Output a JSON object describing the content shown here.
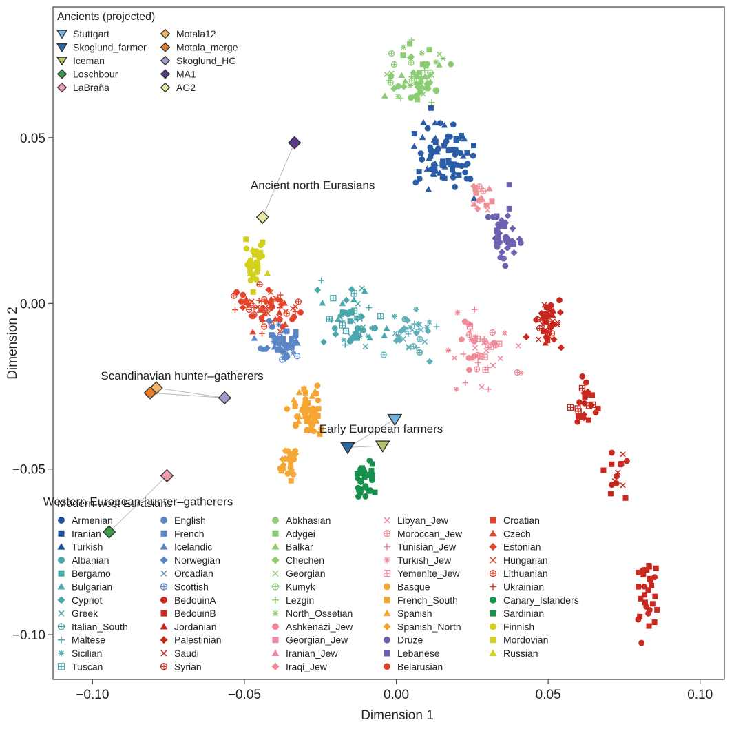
{
  "chart_data": {
    "type": "scatter",
    "xlabel": "Dimension 1",
    "ylabel": "Dimension 2",
    "xlim": [
      -0.113,
      0.108
    ],
    "ylim": [
      -0.1135,
      0.0895
    ],
    "xticks": [
      -0.1,
      -0.05,
      0.0,
      0.05,
      0.1
    ],
    "xtick_labels": [
      "−0.10",
      "−0.05",
      "0.00",
      "0.05",
      "0.10"
    ],
    "yticks": [
      -0.1,
      -0.05,
      0.0,
      0.05
    ],
    "ytick_labels": [
      "−0.10",
      "−0.05",
      "0.00",
      "0.05"
    ],
    "grid": false,
    "legend_ancients_title": "Ancients (projected)",
    "legend_modern_title": "Modern west Eurasians",
    "ancients": [
      {
        "name": "Stuttgart",
        "marker": "tri-down",
        "color": "#6fb1e0",
        "x": -0.0005,
        "y": -0.035
      },
      {
        "name": "Skoglund_farmer",
        "marker": "tri-down",
        "color": "#2b6ca8",
        "x": -0.016,
        "y": -0.0435
      },
      {
        "name": "Iceman",
        "marker": "tri-down",
        "color": "#b6c36a",
        "x": -0.0045,
        "y": -0.043
      },
      {
        "name": "Loschbour",
        "marker": "diamond",
        "color": "#3d9a47",
        "x": -0.0945,
        "y": -0.069
      },
      {
        "name": "LaBraña",
        "marker": "diamond",
        "color": "#f19aa9",
        "x": -0.0755,
        "y": -0.052
      },
      {
        "name": "Motala12",
        "marker": "diamond",
        "color": "#f3b564",
        "x": -0.079,
        "y": -0.0255
      },
      {
        "name": "Motala_merge",
        "marker": "diamond",
        "color": "#e87d2c",
        "x": -0.081,
        "y": -0.027
      },
      {
        "name": "Skoglund_HG",
        "marker": "diamond",
        "color": "#a79ac8",
        "x": -0.0565,
        "y": -0.0285
      },
      {
        "name": "MA1",
        "marker": "diamond",
        "color": "#5b3a8f",
        "x": -0.0335,
        "y": 0.0485
      },
      {
        "name": "AG2",
        "marker": "diamond",
        "color": "#e6eaa1",
        "x": -0.044,
        "y": 0.026
      }
    ],
    "links": [
      [
        -0.0755,
        -0.052,
        -0.0945,
        -0.069
      ],
      [
        -0.079,
        -0.0255,
        -0.0565,
        -0.0285
      ],
      [
        -0.081,
        -0.027,
        -0.0565,
        -0.0285
      ],
      [
        -0.044,
        0.026,
        -0.0335,
        0.0485
      ],
      [
        -0.016,
        -0.0435,
        -0.0045,
        -0.043
      ],
      [
        -0.016,
        -0.0435,
        -0.0005,
        -0.035
      ]
    ],
    "annotations": [
      {
        "text": "Ancient north Eurasians",
        "x": -0.0275,
        "y": 0.0345
      },
      {
        "text": "Scandinavian hunter–gatherers",
        "x": -0.0705,
        "y": -0.023
      },
      {
        "text": "Early European farmers",
        "x": -0.005,
        "y": -0.039
      },
      {
        "text": "Western European hunter–gatherers",
        "x": -0.085,
        "y": -0.061
      }
    ],
    "clusters": [
      {
        "color": "#8ccd73",
        "cx": 0.006,
        "cy": 0.068,
        "sx": 0.0095,
        "sy": 0.008,
        "n": 70,
        "markers": [
          "circle",
          "square",
          "cross",
          "plus",
          "x",
          "triangle",
          "diamond",
          "circleplus"
        ]
      },
      {
        "color": "#2b5da6",
        "cx": 0.016,
        "cy": 0.045,
        "sx": 0.0085,
        "sy": 0.0085,
        "n": 85,
        "markers": [
          "circle",
          "square",
          "triangle",
          "triangle",
          "square",
          "circle"
        ]
      },
      {
        "color": "#f08f96",
        "cx": 0.0275,
        "cy": 0.033,
        "sx": 0.0035,
        "sy": 0.0045,
        "n": 18,
        "markers": [
          "triangle",
          "square",
          "diamond",
          "circleplus",
          "x"
        ]
      },
      {
        "color": "#6c62b0",
        "cx": 0.0355,
        "cy": 0.02,
        "sx": 0.004,
        "sy": 0.0085,
        "n": 42,
        "markers": [
          "circle",
          "square",
          "diamond"
        ]
      },
      {
        "color": "#d4d11d",
        "cx": -0.0465,
        "cy": 0.013,
        "sx": 0.0025,
        "sy": 0.006,
        "n": 32,
        "markers": [
          "circle",
          "square",
          "triangle"
        ]
      },
      {
        "color": "#e2452c",
        "cx": -0.043,
        "cy": -0.001,
        "sx": 0.0095,
        "sy": 0.0055,
        "n": 70,
        "markers": [
          "circle",
          "circleplus",
          "x",
          "plus",
          "diamond",
          "triangle"
        ]
      },
      {
        "color": "#5a86c4",
        "cx": -0.038,
        "cy": -0.011,
        "sx": 0.0055,
        "sy": 0.0045,
        "n": 55,
        "markers": [
          "circle",
          "square",
          "triangle",
          "diamond",
          "cross",
          "circleplus"
        ]
      },
      {
        "color": "#4aa7ab",
        "cx": -0.015,
        "cy": -0.004,
        "sx": 0.008,
        "sy": 0.0085,
        "n": 60,
        "markers": [
          "triangle",
          "x",
          "square",
          "tuscan",
          "cross",
          "circle",
          "diamond",
          "plus"
        ]
      },
      {
        "color": "#5db0b8",
        "cx": 0.006,
        "cy": -0.01,
        "sx": 0.0065,
        "sy": 0.006,
        "n": 38,
        "markers": [
          "cross",
          "diamond",
          "x",
          "plus",
          "circleplus"
        ]
      },
      {
        "color": "#f08a9a",
        "cx": 0.027,
        "cy": -0.015,
        "sx": 0.011,
        "sy": 0.008,
        "n": 48,
        "markers": [
          "cross",
          "x",
          "circleplus",
          "tuscan",
          "plus",
          "circle"
        ]
      },
      {
        "color": "#f6a533",
        "cx": -0.029,
        "cy": -0.033,
        "sx": 0.0045,
        "sy": 0.0055,
        "n": 60,
        "markers": [
          "triangle",
          "circle",
          "square"
        ]
      },
      {
        "color": "#f4a937",
        "cx": -0.035,
        "cy": -0.048,
        "sx": 0.0035,
        "sy": 0.0055,
        "n": 28,
        "markers": [
          "circle",
          "diamond",
          "square"
        ]
      },
      {
        "color": "#17904e",
        "cx": -0.01,
        "cy": -0.053,
        "sx": 0.0025,
        "sy": 0.004,
        "n": 32,
        "markers": [
          "square",
          "circle"
        ]
      },
      {
        "color": "#c9281f",
        "cx": 0.05,
        "cy": -0.007,
        "sx": 0.0045,
        "sy": 0.007,
        "n": 45,
        "markers": [
          "diamond",
          "triangle",
          "x",
          "square",
          "circleplus",
          "circle"
        ]
      },
      {
        "color": "#c9281f",
        "cx": 0.062,
        "cy": -0.03,
        "sx": 0.003,
        "sy": 0.006,
        "n": 24,
        "markers": [
          "circle",
          "diamond",
          "tuscan",
          "square"
        ]
      },
      {
        "color": "#c9281f",
        "cx": 0.072,
        "cy": -0.05,
        "sx": 0.003,
        "sy": 0.007,
        "n": 16,
        "markers": [
          "circle",
          "x",
          "square"
        ]
      },
      {
        "color": "#c9281f",
        "cx": 0.083,
        "cy": -0.088,
        "sx": 0.004,
        "sy": 0.01,
        "n": 28,
        "markers": [
          "square",
          "square",
          "circle"
        ]
      }
    ],
    "modern_legend": [
      {
        "name": "Armenian",
        "marker": "circle",
        "color": "#1f4e9b"
      },
      {
        "name": "Iranian",
        "marker": "square",
        "color": "#1f4e9b"
      },
      {
        "name": "Turkish",
        "marker": "triangle",
        "color": "#1f4e9b"
      },
      {
        "name": "Albanian",
        "marker": "circle",
        "color": "#4aa7ab"
      },
      {
        "name": "Bergamo",
        "marker": "square",
        "color": "#4aa7ab"
      },
      {
        "name": "Bulgarian",
        "marker": "triangle",
        "color": "#4aa7ab"
      },
      {
        "name": "Cypriot",
        "marker": "diamond",
        "color": "#4aa7ab"
      },
      {
        "name": "Greek",
        "marker": "x",
        "color": "#4aa7ab"
      },
      {
        "name": "Italian_South",
        "marker": "circleplus",
        "color": "#4aa7ab"
      },
      {
        "name": "Maltese",
        "marker": "plus",
        "color": "#4aa7ab"
      },
      {
        "name": "Sicilian",
        "marker": "cross",
        "color": "#4aa7ab"
      },
      {
        "name": "Tuscan",
        "marker": "tuscan",
        "color": "#4aa7ab"
      },
      {
        "name": "English",
        "marker": "circle",
        "color": "#5a86c4"
      },
      {
        "name": "French",
        "marker": "square",
        "color": "#5a86c4"
      },
      {
        "name": "Icelandic",
        "marker": "triangle",
        "color": "#5a86c4"
      },
      {
        "name": "Norwegian",
        "marker": "diamond",
        "color": "#5a86c4"
      },
      {
        "name": "Orcadian",
        "marker": "x",
        "color": "#5a86c4"
      },
      {
        "name": "Scottish",
        "marker": "circleplus",
        "color": "#5a86c4"
      },
      {
        "name": "BedouinA",
        "marker": "circle",
        "color": "#c9281f"
      },
      {
        "name": "BedouinB",
        "marker": "square",
        "color": "#c9281f"
      },
      {
        "name": "Jordanian",
        "marker": "triangle",
        "color": "#c9281f"
      },
      {
        "name": "Palestinian",
        "marker": "diamond",
        "color": "#c9281f"
      },
      {
        "name": "Saudi",
        "marker": "x",
        "color": "#c9281f"
      },
      {
        "name": "Syrian",
        "marker": "circleplus",
        "color": "#c9281f"
      },
      {
        "name": "Abkhasian",
        "marker": "circle",
        "color": "#8ccd73"
      },
      {
        "name": "Adygei",
        "marker": "square",
        "color": "#8ccd73"
      },
      {
        "name": "Balkar",
        "marker": "triangle",
        "color": "#8ccd73"
      },
      {
        "name": "Chechen",
        "marker": "diamond",
        "color": "#8ccd73"
      },
      {
        "name": "Georgian",
        "marker": "x",
        "color": "#8ccd73"
      },
      {
        "name": "Kumyk",
        "marker": "circleplus",
        "color": "#8ccd73"
      },
      {
        "name": "Lezgin",
        "marker": "plus",
        "color": "#8ccd73"
      },
      {
        "name": "North_Ossetian",
        "marker": "cross",
        "color": "#8ccd73"
      },
      {
        "name": "Ashkenazi_Jew",
        "marker": "circle",
        "color": "#f08a9a"
      },
      {
        "name": "Georgian_Jew",
        "marker": "square",
        "color": "#f08a9a"
      },
      {
        "name": "Iranian_Jew",
        "marker": "triangle",
        "color": "#f08a9a"
      },
      {
        "name": "Iraqi_Jew",
        "marker": "diamond",
        "color": "#f08a9a"
      },
      {
        "name": "Libyan_Jew",
        "marker": "x",
        "color": "#f08a9a"
      },
      {
        "name": "Moroccan_Jew",
        "marker": "circleplus",
        "color": "#f08a9a"
      },
      {
        "name": "Tunisian_Jew",
        "marker": "plus",
        "color": "#f08a9a"
      },
      {
        "name": "Turkish_Jew",
        "marker": "cross",
        "color": "#f08a9a"
      },
      {
        "name": "Yemenite_Jew",
        "marker": "tuscan",
        "color": "#f08a9a"
      },
      {
        "name": "Basque",
        "marker": "circle",
        "color": "#f6a533"
      },
      {
        "name": "French_South",
        "marker": "square",
        "color": "#f6a533"
      },
      {
        "name": "Spanish",
        "marker": "triangle",
        "color": "#f6a533"
      },
      {
        "name": "Spanish_North",
        "marker": "diamond",
        "color": "#f6a533"
      },
      {
        "name": "Druze",
        "marker": "circle",
        "color": "#6c62b0"
      },
      {
        "name": "Lebanese",
        "marker": "square",
        "color": "#6c62b0"
      },
      {
        "name": "Belarusian",
        "marker": "circle",
        "color": "#e2452c"
      },
      {
        "name": "Croatian",
        "marker": "square",
        "color": "#e2452c"
      },
      {
        "name": "Czech",
        "marker": "triangle",
        "color": "#e2452c"
      },
      {
        "name": "Estonian",
        "marker": "diamond",
        "color": "#e2452c"
      },
      {
        "name": "Hungarian",
        "marker": "x",
        "color": "#e2452c"
      },
      {
        "name": "Lithuanian",
        "marker": "circleplus",
        "color": "#e2452c"
      },
      {
        "name": "Ukrainian",
        "marker": "plus",
        "color": "#e2452c"
      },
      {
        "name": "Canary_Islanders",
        "marker": "circle",
        "color": "#17904e"
      },
      {
        "name": "Sardinian",
        "marker": "square",
        "color": "#17904e"
      },
      {
        "name": "Finnish",
        "marker": "circle",
        "color": "#d4d11d"
      },
      {
        "name": "Mordovian",
        "marker": "square",
        "color": "#d4d11d"
      },
      {
        "name": "Russian",
        "marker": "triangle",
        "color": "#d4d11d"
      }
    ]
  }
}
